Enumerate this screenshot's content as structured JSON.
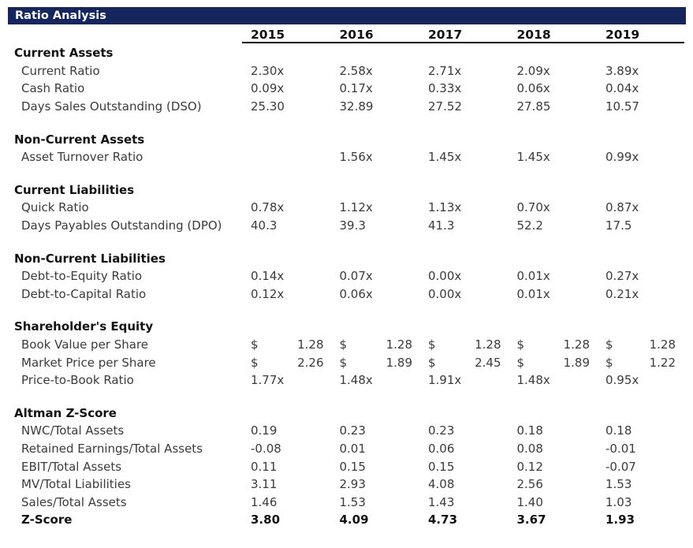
{
  "title": "Ratio Analysis",
  "colors": {
    "header_bg": "#16265C",
    "header_text": "#FFFFFF",
    "body_text": "#3B3B3B",
    "bold_text": "#111111",
    "rule": "#000000"
  },
  "years": [
    "2015",
    "2016",
    "2017",
    "2018",
    "2019"
  ],
  "sections": [
    {
      "title": "Current Assets",
      "rows": [
        {
          "label": "Current Ratio",
          "format": "plain",
          "values": [
            "2.30x",
            "2.58x",
            "2.71x",
            "2.09x",
            "3.89x"
          ]
        },
        {
          "label": "Cash Ratio",
          "format": "plain",
          "values": [
            "0.09x",
            "0.17x",
            "0.33x",
            "0.06x",
            "0.04x"
          ]
        },
        {
          "label": "Days Sales Outstanding (DSO)",
          "format": "plain",
          "values": [
            "25.30",
            "32.89",
            "27.52",
            "27.85",
            "10.57"
          ]
        }
      ]
    },
    {
      "title": "Non-Current Assets",
      "rows": [
        {
          "label": "Asset Turnover Ratio",
          "format": "plain",
          "values": [
            "",
            "1.56x",
            "1.45x",
            "1.45x",
            "0.99x"
          ]
        }
      ]
    },
    {
      "title": "Current Liabilities",
      "rows": [
        {
          "label": "Quick Ratio",
          "format": "plain",
          "values": [
            "0.78x",
            "1.12x",
            "1.13x",
            "0.70x",
            "0.87x"
          ]
        },
        {
          "label": "Days Payables Outstanding (DPO)",
          "format": "plain",
          "values": [
            "40.3",
            "39.3",
            "41.3",
            "52.2",
            "17.5"
          ]
        }
      ]
    },
    {
      "title": "Non-Current Liabilities",
      "rows": [
        {
          "label": "Debt-to-Equity Ratio",
          "format": "plain",
          "values": [
            "0.14x",
            "0.07x",
            "0.00x",
            "0.01x",
            "0.27x"
          ]
        },
        {
          "label": "Debt-to-Capital Ratio",
          "format": "plain",
          "values": [
            "0.12x",
            "0.06x",
            "0.00x",
            "0.01x",
            "0.21x"
          ]
        }
      ]
    },
    {
      "title": "Shareholder's Equity",
      "rows": [
        {
          "label": "Book Value per Share",
          "format": "accounting",
          "currency": "$",
          "values": [
            "1.28",
            "1.28",
            "1.28",
            "1.28",
            "1.28"
          ]
        },
        {
          "label": "Market Price per Share",
          "format": "accounting",
          "currency": "$",
          "values": [
            "2.26",
            "1.89",
            "2.45",
            "1.89",
            "1.22"
          ]
        },
        {
          "label": "Price-to-Book Ratio",
          "format": "plain",
          "values": [
            "1.77x",
            "1.48x",
            "1.91x",
            "1.48x",
            "0.95x"
          ]
        }
      ]
    },
    {
      "title": "Altman Z-Score",
      "rows": [
        {
          "label": "NWC/Total Assets",
          "format": "plain",
          "values": [
            "0.19",
            "0.23",
            "0.23",
            "0.18",
            "0.18"
          ]
        },
        {
          "label": "Retained Earnings/Total Assets",
          "format": "plain",
          "values": [
            "-0.08",
            "0.01",
            "0.06",
            "0.08",
            "-0.01"
          ]
        },
        {
          "label": "EBIT/Total Assets",
          "format": "plain",
          "values": [
            "0.11",
            "0.15",
            "0.15",
            "0.12",
            "-0.07"
          ]
        },
        {
          "label": "MV/Total Liabilities",
          "format": "plain",
          "values": [
            "3.11",
            "2.93",
            "4.08",
            "2.56",
            "1.53"
          ]
        },
        {
          "label": "Sales/Total Assets",
          "format": "plain",
          "values": [
            "1.46",
            "1.53",
            "1.43",
            "1.40",
            "1.03"
          ]
        },
        {
          "label": "Z-Score",
          "format": "plain",
          "bold": true,
          "values": [
            "3.80",
            "4.09",
            "4.73",
            "3.67",
            "1.93"
          ]
        }
      ]
    }
  ]
}
